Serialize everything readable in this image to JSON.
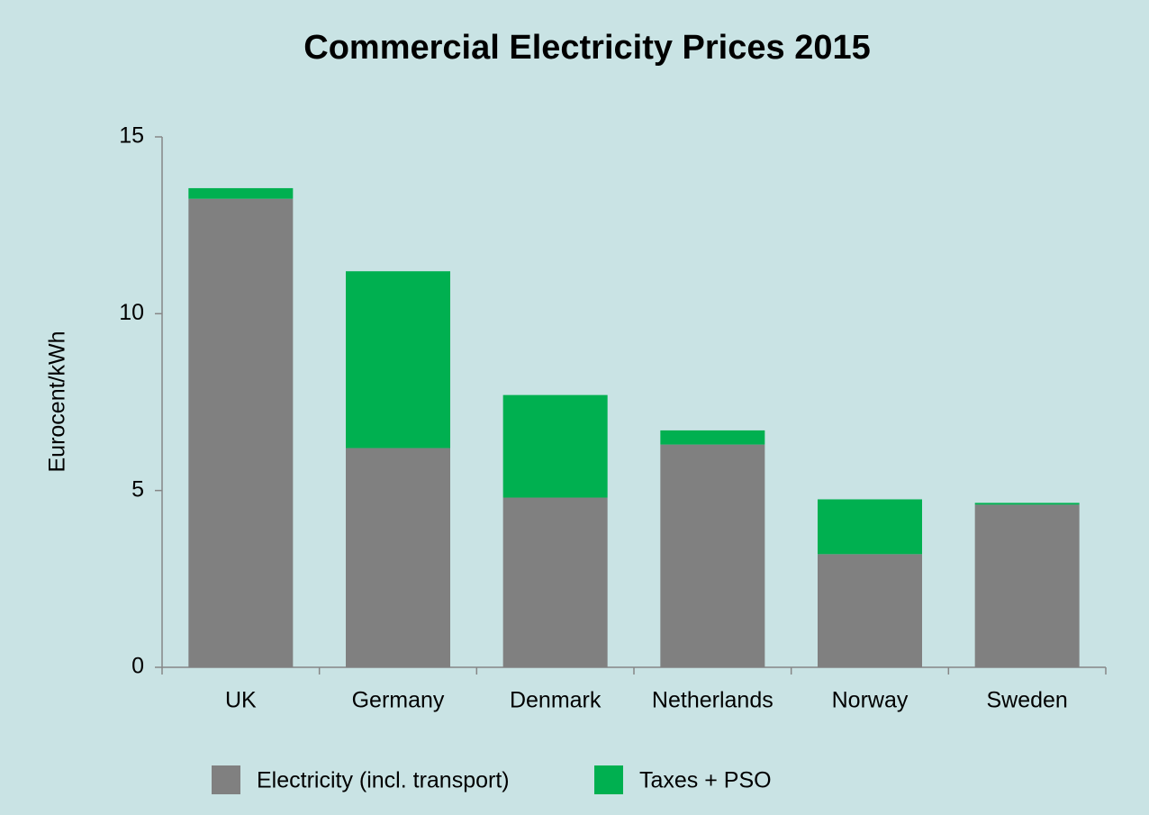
{
  "chart_data": {
    "type": "stacked_bar",
    "title": "Commercial Electricity Prices 2015",
    "y_label": "Eurocent/kWh",
    "categories": [
      "UK",
      "Germany",
      "Denmark",
      "Netherlands",
      "Norway",
      "Sweden"
    ],
    "series": [
      {
        "name": "Electricity (incl. transport)",
        "color": "#808080",
        "values": [
          13.25,
          6.2,
          4.8,
          6.3,
          3.2,
          4.6
        ]
      },
      {
        "name": "Taxes + PSO",
        "color": "#00b050",
        "values": [
          0.3,
          5.0,
          2.9,
          0.4,
          1.55,
          0.05
        ]
      }
    ],
    "ylim": [
      0,
      15
    ],
    "yticks": [
      0,
      5,
      10,
      15
    ],
    "grid": false,
    "legend": "bottom"
  }
}
